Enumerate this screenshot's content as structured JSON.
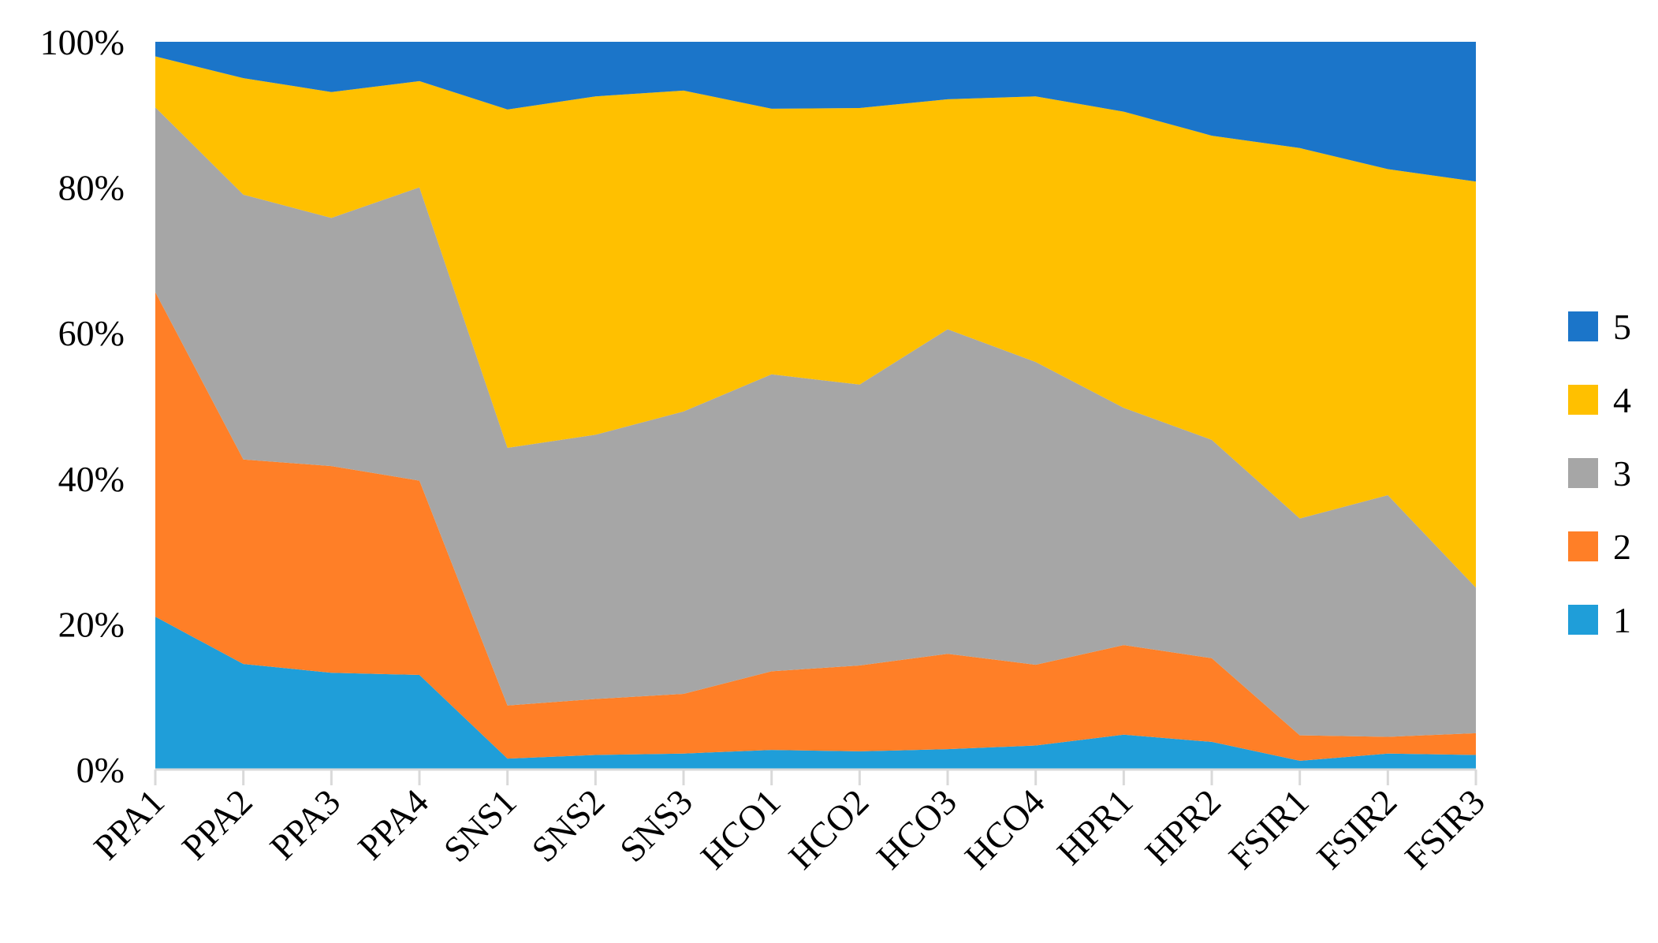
{
  "chart_data": {
    "type": "area",
    "stacked": true,
    "percent": true,
    "categories": [
      "PPA1",
      "PPA2",
      "PPA3",
      "PPA4",
      "SNS1",
      "SNS2",
      "SNS3",
      "HCO1",
      "HCO2",
      "HCO3",
      "HCO4",
      "HPR1",
      "HPR2",
      "FSIR1",
      "FSIR2",
      "FSIR3"
    ],
    "series": [
      {
        "name": "1",
        "color": "#1F9ED9",
        "values": [
          21,
          14.5,
          13.3,
          13,
          1.5,
          2,
          2.2,
          2.7,
          2.5,
          2.8,
          3.3,
          4.8,
          3.8,
          1.2,
          2.2,
          2
        ]
      },
      {
        "name": "2",
        "color": "#FF7F27",
        "values": [
          44.6,
          28.1,
          28.4,
          26.7,
          7.3,
          7.7,
          8.2,
          10.8,
          11.8,
          13.1,
          11.1,
          12.3,
          11.5,
          3.5,
          2.3,
          3
        ]
      },
      {
        "name": "3",
        "color": "#A6A6A6",
        "values": [
          25.4,
          36.4,
          34.1,
          40.3,
          35.4,
          36.3,
          38.8,
          40.8,
          38.6,
          44.6,
          41.6,
          32.6,
          30,
          29.8,
          33.2,
          20
        ]
      },
      {
        "name": "4",
        "color": "#FFC000",
        "values": [
          7,
          16,
          17.3,
          14.6,
          46.5,
          46.5,
          44.1,
          36.5,
          38,
          31.6,
          36.5,
          40.7,
          41.8,
          50.9,
          44.8,
          55.8
        ]
      },
      {
        "name": "5",
        "color": "#1B75C9",
        "values": [
          2,
          5,
          6.9,
          5.4,
          9.3,
          7.5,
          6.7,
          9.2,
          9.1,
          7.9,
          7.5,
          9.6,
          12.9,
          14.6,
          17.5,
          19.2
        ]
      }
    ],
    "ylim": [
      0,
      100
    ],
    "yticks": [
      "0%",
      "20%",
      "40%",
      "60%",
      "80%",
      "100%"
    ],
    "legend_position": "right",
    "grid": false
  }
}
